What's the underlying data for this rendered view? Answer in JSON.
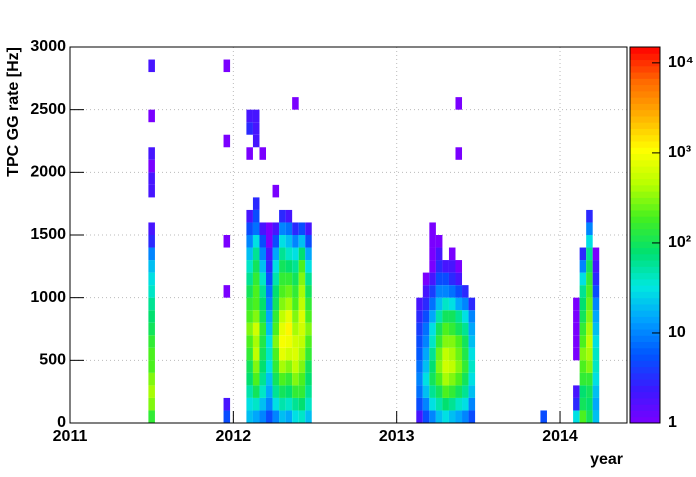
{
  "chart_data": {
    "type": "heatmap",
    "x_label": "year",
    "y_label": "TPC GG rate [Hz]",
    "xlim": [
      2011,
      2014.41
    ],
    "xticks": [
      2011,
      2012,
      2013,
      2014
    ],
    "ylim": [
      0,
      3000
    ],
    "yticks": [
      0,
      500,
      1000,
      1500,
      2000,
      2500,
      3000
    ],
    "zlim": [
      1,
      15000
    ],
    "zlog": true,
    "zticks": [
      1,
      10,
      {
        "value": 100,
        "label": "10²"
      },
      {
        "value": 1000,
        "label": "10³"
      },
      {
        "value": 10000,
        "label": "10⁴"
      }
    ],
    "colormap": [
      "#7a00ff",
      "#3a1aff",
      "#0055ff",
      "#00a0ff",
      "#00e8e0",
      "#00e070",
      "#44f020",
      "#b8ff00",
      "#ffff00",
      "#ffb000",
      "#ff6a00",
      "#ff0000"
    ],
    "grid": true,
    "ybins": [
      0,
      100,
      200,
      300,
      400,
      500,
      600,
      700,
      800,
      900,
      1000,
      1100,
      1200,
      1300,
      1400,
      1500,
      1600,
      1700,
      1800,
      1900,
      2000,
      2100,
      2200,
      2300,
      2400,
      2500,
      2600,
      2700,
      2800,
      2900,
      3000
    ],
    "columns": [
      {
        "x": [
          2011.48,
          2011.52
        ],
        "z": [
          150,
          300,
          400,
          300,
          200,
          200,
          150,
          100,
          80,
          60,
          40,
          30,
          20,
          10,
          3,
          2,
          null,
          null,
          2,
          2,
          1,
          2,
          null,
          null,
          1,
          null,
          null,
          null,
          2
        ]
      },
      {
        "x": [
          2011.94,
          2011.98
        ],
        "z": [
          5,
          2,
          null,
          null,
          null,
          null,
          null,
          null,
          null,
          null,
          1,
          null,
          null,
          null,
          1,
          null,
          null,
          null,
          null,
          null,
          null,
          null,
          1,
          null,
          null,
          null,
          null,
          null,
          1
        ]
      },
      {
        "x": [
          2012.08,
          2012.12
        ],
        "z": [
          20,
          30,
          50,
          80,
          100,
          150,
          200,
          300,
          200,
          150,
          100,
          60,
          40,
          20,
          10,
          5,
          2,
          null,
          null,
          null,
          null,
          1,
          null,
          3,
          2
        ]
      },
      {
        "x": [
          2012.12,
          2012.16
        ],
        "z": [
          15,
          40,
          100,
          200,
          300,
          500,
          400,
          600,
          300,
          200,
          200,
          150,
          100,
          60,
          30,
          8,
          5,
          3,
          null,
          null,
          null,
          null,
          2,
          2,
          2
        ]
      },
      {
        "x": [
          2012.16,
          2012.2
        ],
        "z": [
          10,
          20,
          40,
          60,
          80,
          100,
          120,
          150,
          100,
          80,
          60,
          40,
          20,
          10,
          5,
          2,
          null,
          null,
          null,
          null,
          null,
          1
        ]
      },
      {
        "x": [
          2012.2,
          2012.24
        ],
        "z": [
          5,
          10,
          15,
          20,
          30,
          40,
          30,
          20,
          15,
          10,
          8,
          5,
          3,
          2,
          1,
          1
        ]
      },
      {
        "x": [
          2012.24,
          2012.28
        ],
        "z": [
          10,
          30,
          60,
          100,
          150,
          200,
          300,
          200,
          150,
          100,
          80,
          50,
          30,
          15,
          5,
          2,
          null,
          null,
          1
        ]
      },
      {
        "x": [
          2012.28,
          2012.32
        ],
        "z": [
          20,
          50,
          100,
          200,
          400,
          800,
          1000,
          800,
          500,
          300,
          200,
          150,
          100,
          60,
          30,
          10,
          3
        ]
      },
      {
        "x": [
          2012.32,
          2012.36
        ],
        "z": [
          15,
          40,
          80,
          150,
          300,
          600,
          900,
          1200,
          800,
          400,
          250,
          150,
          80,
          40,
          20,
          8,
          2
        ]
      },
      {
        "x": [
          2012.36,
          2012.4
        ],
        "z": [
          30,
          60,
          150,
          300,
          500,
          700,
          600,
          400,
          300,
          200,
          150,
          100,
          60,
          30,
          10,
          3,
          null,
          null,
          null,
          null,
          null,
          null,
          null,
          null,
          null,
          1
        ]
      },
      {
        "x": [
          2012.4,
          2012.44
        ],
        "z": [
          40,
          80,
          150,
          200,
          300,
          400,
          500,
          600,
          700,
          500,
          400,
          300,
          200,
          80,
          20,
          5
        ]
      },
      {
        "x": [
          2012.44,
          2012.48
        ],
        "z": [
          20,
          40,
          60,
          80,
          100,
          150,
          200,
          300,
          200,
          150,
          100,
          60,
          30,
          15,
          5,
          2
        ]
      },
      {
        "x": [
          2013.12,
          2013.16
        ],
        "z": [
          2,
          5,
          8,
          10,
          8,
          6,
          5,
          4,
          3,
          2
        ]
      },
      {
        "x": [
          2013.16,
          2013.2
        ],
        "z": [
          5,
          10,
          20,
          30,
          20,
          15,
          10,
          8,
          5,
          3,
          2,
          1
        ]
      },
      {
        "x": [
          2013.2,
          2013.24
        ],
        "z": [
          10,
          30,
          60,
          100,
          80,
          60,
          40,
          30,
          15,
          8,
          4,
          2,
          1,
          1,
          1,
          1
        ]
      },
      {
        "x": [
          2013.24,
          2013.28
        ],
        "z": [
          20,
          50,
          100,
          200,
          300,
          250,
          150,
          100,
          50,
          20,
          10,
          5,
          3,
          2,
          1
        ]
      },
      {
        "x": [
          2013.28,
          2013.32
        ],
        "z": [
          30,
          80,
          200,
          400,
          600,
          500,
          300,
          200,
          100,
          40,
          10,
          5,
          2
        ]
      },
      {
        "x": [
          2013.32,
          2013.36
        ],
        "z": [
          20,
          60,
          150,
          300,
          500,
          400,
          300,
          150,
          100,
          30,
          8,
          3,
          2,
          1
        ]
      },
      {
        "x": [
          2013.36,
          2013.4
        ],
        "z": [
          15,
          40,
          100,
          200,
          300,
          250,
          200,
          100,
          60,
          15,
          5,
          2,
          1,
          null,
          null,
          null,
          null,
          null,
          null,
          null,
          null,
          1,
          null,
          null,
          null,
          1
        ]
      },
      {
        "x": [
          2013.4,
          2013.44
        ],
        "z": [
          10,
          30,
          60,
          100,
          150,
          120,
          100,
          60,
          30,
          10,
          3
        ]
      },
      {
        "x": [
          2013.44,
          2013.48
        ],
        "z": [
          5,
          10,
          20,
          30,
          40,
          30,
          20,
          15,
          10,
          3
        ]
      },
      {
        "x": [
          2013.88,
          2013.92
        ],
        "z": [
          5
        ]
      },
      {
        "x": [
          2014.08,
          2014.12
        ],
        "z": [
          30,
          3,
          2,
          null,
          null,
          1,
          1,
          1,
          1,
          1
        ]
      },
      {
        "x": [
          2014.12,
          2014.16
        ],
        "z": [
          200,
          100,
          80,
          150,
          200,
          300,
          200,
          150,
          100,
          80,
          60,
          30,
          10,
          3
        ]
      },
      {
        "x": [
          2014.16,
          2014.2
        ],
        "z": [
          100,
          80,
          100,
          150,
          300,
          400,
          500,
          400,
          300,
          250,
          200,
          150,
          100,
          60,
          30,
          10,
          3
        ]
      },
      {
        "x": [
          2014.2,
          2014.24
        ],
        "z": [
          20,
          15,
          20,
          30,
          40,
          40,
          30,
          20,
          15,
          10,
          5,
          3,
          2,
          1
        ]
      }
    ]
  }
}
